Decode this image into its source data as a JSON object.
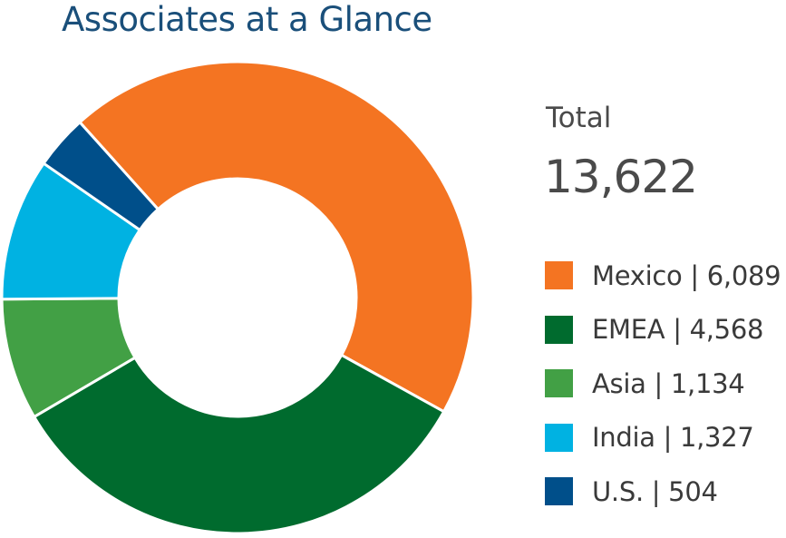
{
  "chart_data": {
    "type": "pie",
    "donut": true,
    "title": "Associates at a Glance",
    "total": {
      "label": "Total",
      "value": "13,622"
    },
    "slices": [
      {
        "name": "Mexico",
        "label": "Mexico | 6,089",
        "value": 6089,
        "color": "#f47422"
      },
      {
        "name": "EMEA",
        "label": "EMEA | 4,568",
        "value": 4568,
        "color": "#006b2e"
      },
      {
        "name": "Asia",
        "label": "Asia | 1,134",
        "value": 1134,
        "color": "#42a045"
      },
      {
        "name": "India",
        "label": "India | 1,327",
        "value": 1327,
        "color": "#00b2e2"
      },
      {
        "name": "U.S.",
        "label": "U.S. | 504",
        "value": 504,
        "color": "#004f8a"
      }
    ],
    "legend_position": "right"
  }
}
